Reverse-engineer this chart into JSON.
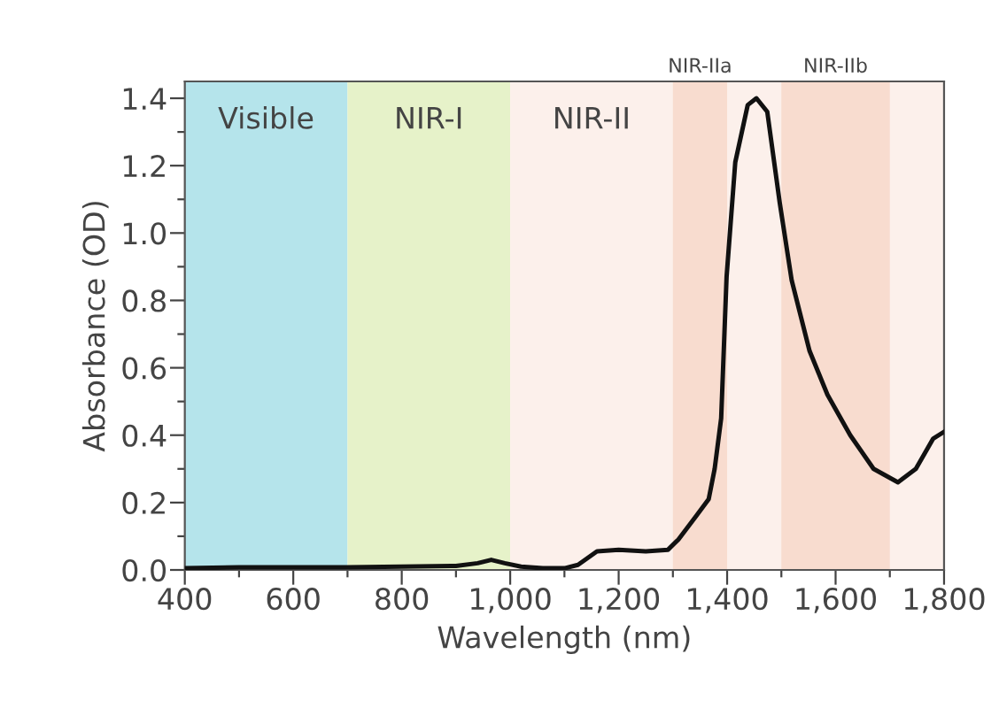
{
  "chart_data": {
    "type": "line",
    "xlabel": "Wavelength (nm)",
    "ylabel": "Absorbance (OD)",
    "x": [
      400,
      500,
      600,
      700,
      800,
      900,
      940,
      965,
      990,
      1020,
      1060,
      1100,
      1125,
      1160,
      1200,
      1250,
      1291,
      1310,
      1343,
      1366,
      1377,
      1389,
      1399,
      1415,
      1438,
      1454,
      1474,
      1497,
      1519,
      1552,
      1585,
      1627,
      1670,
      1715,
      1748,
      1780,
      1800
    ],
    "series": [
      {
        "color": "#111111",
        "values": [
          0.005,
          0.008,
          0.008,
          0.008,
          0.01,
          0.012,
          0.02,
          0.03,
          0.02,
          0.01,
          0.005,
          0.005,
          0.015,
          0.055,
          0.06,
          0.055,
          0.06,
          0.09,
          0.16,
          0.21,
          0.3,
          0.45,
          0.87,
          1.21,
          1.38,
          1.4,
          1.36,
          1.09,
          0.86,
          0.65,
          0.52,
          0.4,
          0.3,
          0.26,
          0.3,
          0.39,
          0.41
        ]
      }
    ],
    "xlim": [
      400,
      1800
    ],
    "ylim": [
      0,
      1.45
    ],
    "xticks": [
      {
        "value": 400,
        "label": "400"
      },
      {
        "value": 500,
        "label": null
      },
      {
        "value": 600,
        "label": "600"
      },
      {
        "value": 700,
        "label": null
      },
      {
        "value": 800,
        "label": "800"
      },
      {
        "value": 900,
        "label": null
      },
      {
        "value": 1000,
        "label": "1,000"
      },
      {
        "value": 1100,
        "label": null
      },
      {
        "value": 1200,
        "label": "1,200"
      },
      {
        "value": 1300,
        "label": null
      },
      {
        "value": 1400,
        "label": "1,400"
      },
      {
        "value": 1500,
        "label": null
      },
      {
        "value": 1600,
        "label": "1,600"
      },
      {
        "value": 1700,
        "label": null
      },
      {
        "value": 1800,
        "label": "1,800"
      }
    ],
    "yticks": [
      {
        "value": 0,
        "label": "0.0"
      },
      {
        "value": 0.1,
        "label": null
      },
      {
        "value": 0.2,
        "label": "0.2"
      },
      {
        "value": 0.3,
        "label": null
      },
      {
        "value": 0.4,
        "label": "0.4"
      },
      {
        "value": 0.5,
        "label": null
      },
      {
        "value": 0.6,
        "label": "0.6"
      },
      {
        "value": 0.7,
        "label": null
      },
      {
        "value": 0.8,
        "label": "0.8"
      },
      {
        "value": 0.9,
        "label": null
      },
      {
        "value": 1.0,
        "label": "1.0"
      },
      {
        "value": 1.1,
        "label": null
      },
      {
        "value": 1.2,
        "label": "1.2"
      },
      {
        "value": 1.3,
        "label": null
      },
      {
        "value": 1.4,
        "label": "1.4"
      }
    ],
    "bands": [
      {
        "axis": "x",
        "from": 400,
        "to": 700,
        "label": "Visible",
        "color": "#b5e4eb"
      },
      {
        "axis": "x",
        "from": 700,
        "to": 1000,
        "label": "NIR-I",
        "color": "#e6f2c9"
      },
      {
        "axis": "x",
        "from": 1000,
        "to": 1800,
        "label": "NIR-II",
        "color": "#fcf0eb"
      },
      {
        "axis": "x",
        "from": 1300,
        "to": 1400,
        "label": "NIR-IIa",
        "color": "#f8dccf"
      },
      {
        "axis": "x",
        "from": 1500,
        "to": 1700,
        "label": "NIR-IIb",
        "color": "#f8dccf"
      }
    ],
    "grid": false,
    "legend": false,
    "line_style": "solid",
    "marker": "none"
  }
}
